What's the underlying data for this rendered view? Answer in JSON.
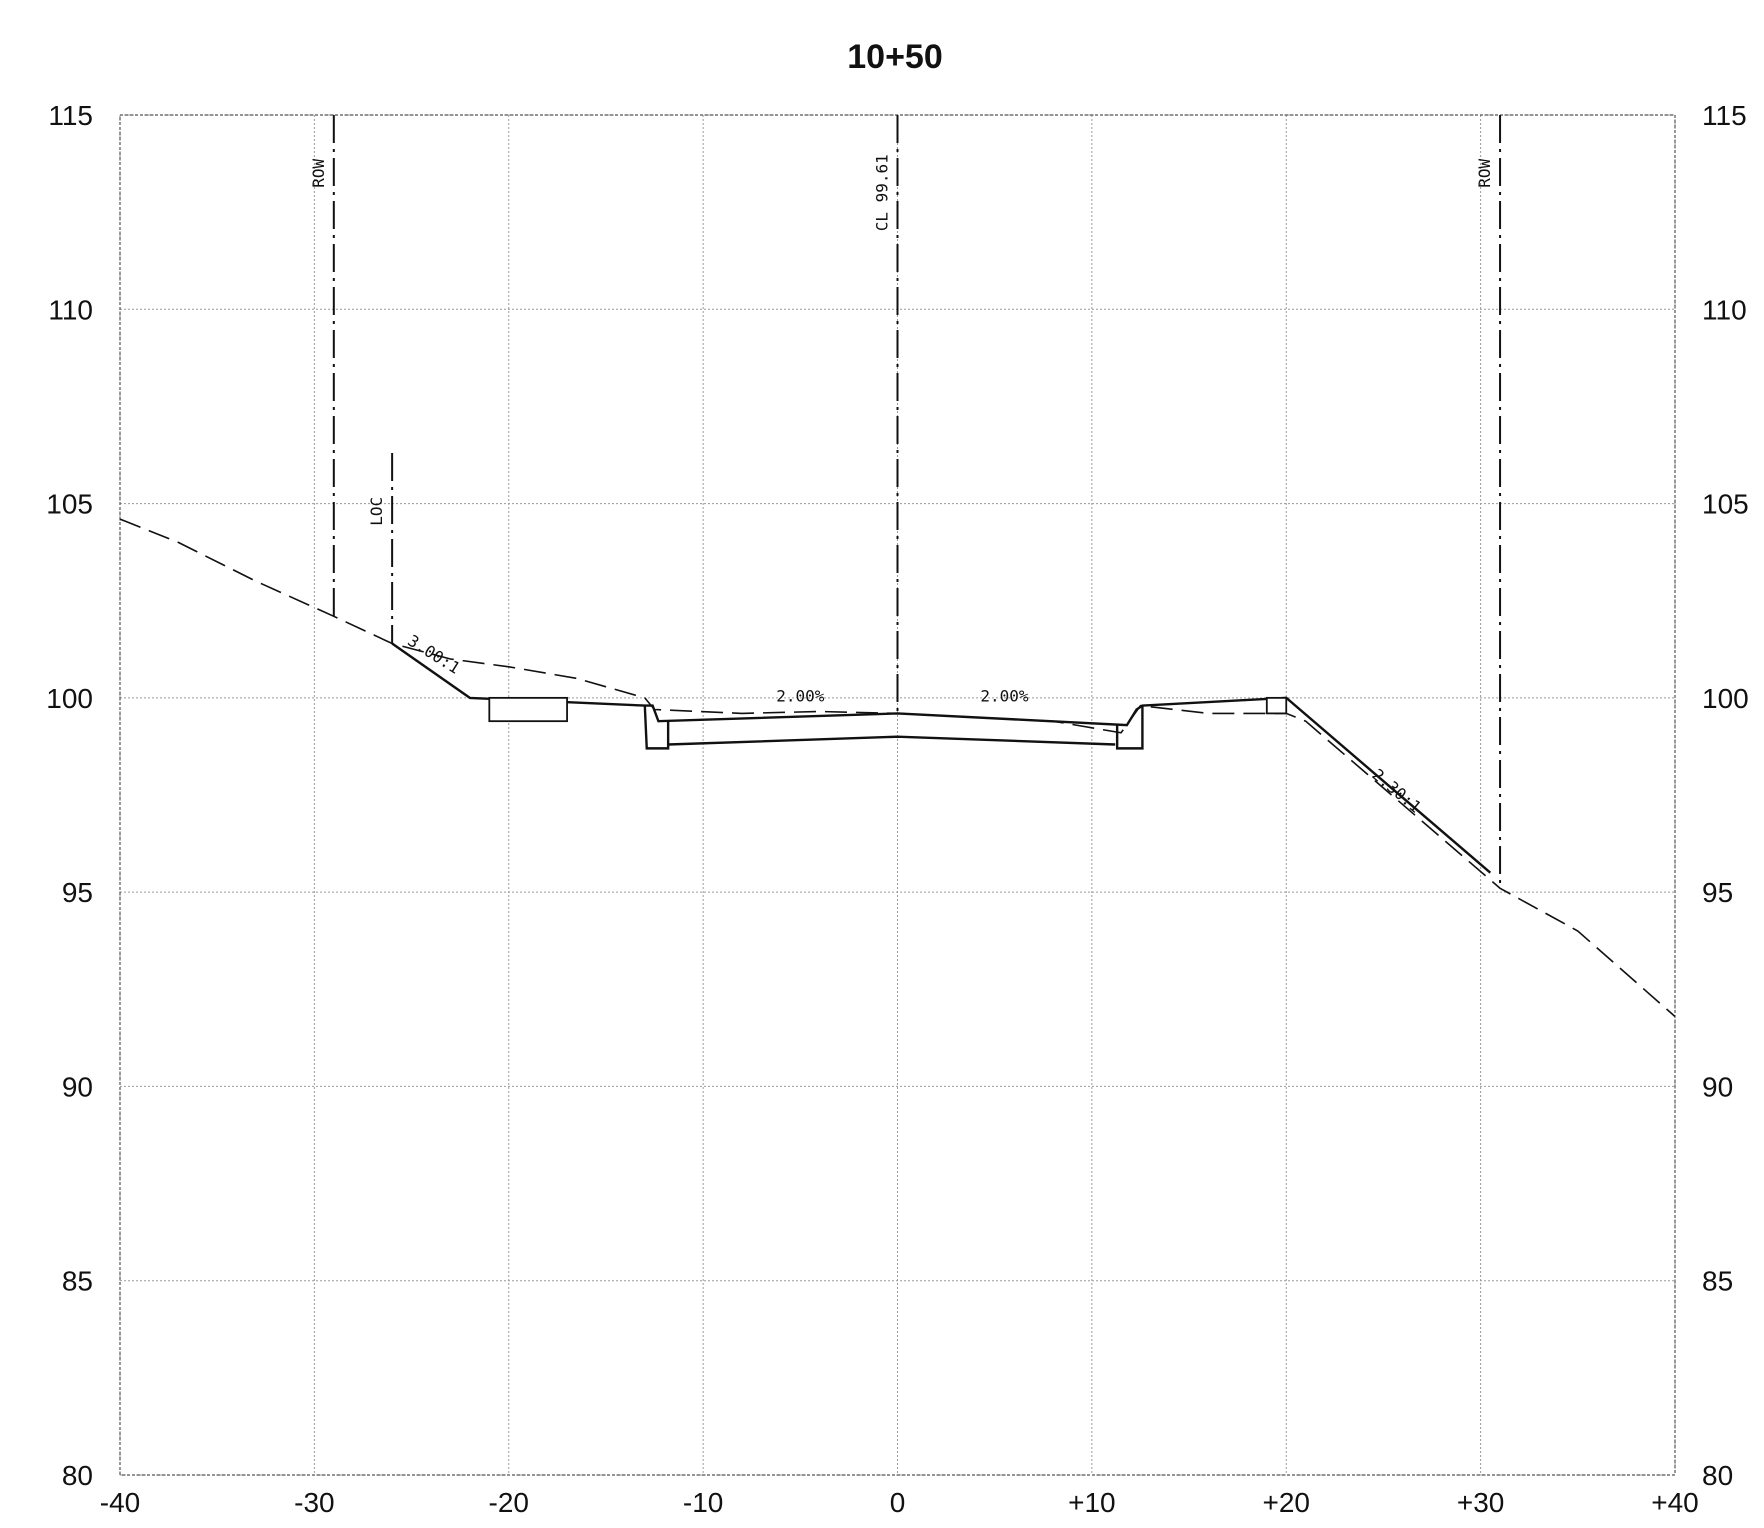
{
  "title": "10+50",
  "x_ticks": [
    "-40",
    "-30",
    "-20",
    "-10",
    "0",
    "+10",
    "+20",
    "+30",
    "+40"
  ],
  "y_ticks": [
    "115",
    "110",
    "105",
    "100",
    "95",
    "90",
    "85",
    "80"
  ],
  "chart_data": {
    "type": "line",
    "title": "10+50",
    "xlim": [
      -40,
      40
    ],
    "ylim": [
      80,
      115
    ],
    "grid": true,
    "x_tick_values": [
      -40,
      -30,
      -20,
      -10,
      0,
      10,
      20,
      30,
      40
    ],
    "y_tick_values": [
      80,
      85,
      90,
      95,
      100,
      105,
      110,
      115
    ],
    "series": [
      {
        "style": "dashed",
        "x": [
          -40,
          -37,
          -33,
          -29,
          -26,
          -23,
          -20,
          -16.5,
          -13,
          -12.5,
          -8,
          -4,
          0,
          4,
          8,
          11.5,
          12.5,
          16,
          20,
          21,
          31,
          35,
          40
        ],
        "y": [
          104.6,
          104,
          103,
          102.1,
          101.4,
          101,
          100.8,
          100.5,
          100,
          99.7,
          99.6,
          99.65,
          99.6,
          99.5,
          99.4,
          99.1,
          99.8,
          99.6,
          99.6,
          99.4,
          95.1,
          94,
          91.8
        ]
      },
      {
        "style": "solid",
        "x": [
          -26,
          -22,
          -13,
          -12.6,
          -12.3,
          0,
          11.8,
          12.3,
          12.6,
          20,
          30.5
        ],
        "y": [
          101.4,
          100,
          99.8,
          99.8,
          99.4,
          99.6,
          99.3,
          99.7,
          99.8,
          100,
          95.5
        ]
      },
      {
        "style": "solid",
        "x": [
          -11.8,
          0,
          11.2
        ],
        "y": [
          98.8,
          99.0,
          98.8
        ]
      }
    ],
    "annotations": [
      {
        "text": "ROW",
        "x": -29,
        "y": 113.5
      },
      {
        "text": "LOC",
        "x": -26,
        "y": 104.8
      },
      {
        "text": "CL 99.61",
        "x": 0,
        "y": 113
      },
      {
        "text": "ROW",
        "x": 31,
        "y": 113.5
      },
      {
        "text": "3.00:1",
        "x": -24,
        "y": 101.0
      },
      {
        "text": "2.00%",
        "x": -5,
        "y": 99.9
      },
      {
        "text": "2.00%",
        "x": 5.5,
        "y": 99.9
      },
      {
        "text": "2.30:1",
        "x": 25.5,
        "y": 97.5
      }
    ]
  }
}
